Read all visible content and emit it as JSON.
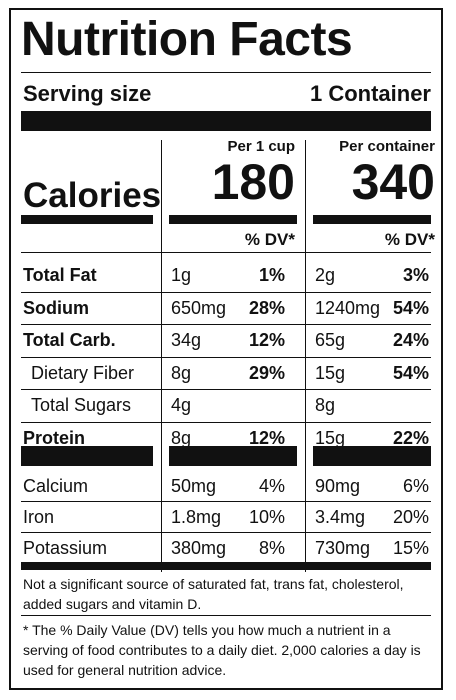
{
  "title": "Nutrition Facts",
  "serving": {
    "label": "Serving size",
    "value": "1 Container"
  },
  "columns": {
    "per_cup": {
      "header": "Per 1 cup",
      "calories": "180",
      "dv_header": "% DV*"
    },
    "per_container": {
      "header": "Per container",
      "calories": "340",
      "dv_header": "% DV*"
    }
  },
  "calories_label": "Calories",
  "nutrients": [
    {
      "name": "Total Fat",
      "bold": true,
      "indent": false,
      "cup_amt": "1g",
      "cup_dv": "1%",
      "con_amt": "2g",
      "con_dv": "3%"
    },
    {
      "name": "Sodium",
      "bold": true,
      "indent": false,
      "cup_amt": "650mg",
      "cup_dv": "28%",
      "con_amt": "1240mg",
      "con_dv": "54%"
    },
    {
      "name": "Total Carb.",
      "bold": true,
      "indent": false,
      "cup_amt": "34g",
      "cup_dv": "12%",
      "con_amt": "65g",
      "con_dv": "24%"
    },
    {
      "name": "Dietary Fiber",
      "bold": false,
      "indent": true,
      "cup_amt": "8g",
      "cup_dv": "29%",
      "con_amt": "15g",
      "con_dv": "54%"
    },
    {
      "name": "Total Sugars",
      "bold": false,
      "indent": true,
      "cup_amt": "4g",
      "cup_dv": "",
      "con_amt": "8g",
      "con_dv": ""
    },
    {
      "name": "Protein",
      "bold": true,
      "indent": false,
      "cup_amt": "8g",
      "cup_dv": "12%",
      "con_amt": "15g",
      "con_dv": "22%"
    }
  ],
  "minerals": [
    {
      "name": "Calcium",
      "cup_amt": "50mg",
      "cup_dv": "4%",
      "con_amt": "90mg",
      "con_dv": "6%"
    },
    {
      "name": "Iron",
      "cup_amt": "1.8mg",
      "cup_dv": "10%",
      "con_amt": "3.4mg",
      "con_dv": "20%"
    },
    {
      "name": "Potassium",
      "cup_amt": "380mg",
      "cup_dv": "8%",
      "con_amt": "730mg",
      "con_dv": "15%"
    }
  ],
  "footnote_1": "Not a significant source of saturated fat, trans fat, cholesterol, added sugars and vitamin D.",
  "footnote_2": "* The % Daily Value (DV) tells you how much a nutrient in a serving of food contributes to a daily diet. 2,000 calories a day is used for general nutrition advice."
}
